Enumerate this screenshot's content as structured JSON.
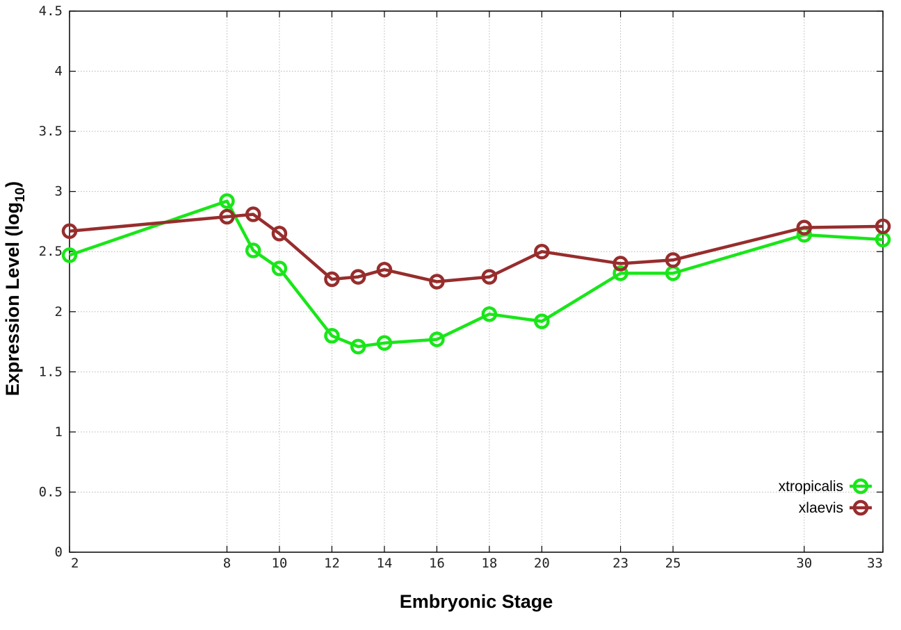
{
  "chart_data": {
    "type": "line",
    "xlabel": "Embryonic Stage",
    "ylabel": "Expression Level (log",
    "ylabel_subscript": "10",
    "ylabel_suffix": ")",
    "x": [
      2,
      8,
      9,
      10,
      12,
      13,
      14,
      16,
      18,
      20,
      23,
      25,
      30,
      33
    ],
    "x_ticks": [
      "2",
      "8",
      "10",
      "12",
      "14",
      "16",
      "18",
      "20",
      "23",
      "25",
      "30",
      "33"
    ],
    "y_ticks": [
      "0",
      "0.5",
      "1",
      "1.5",
      "2",
      "2.5",
      "3",
      "3.5",
      "4",
      "4.5"
    ],
    "ylim": [
      0,
      4.5
    ],
    "grid": true,
    "legend_position": "bottom-right",
    "series": [
      {
        "name": "xtropicalis",
        "color": "#19e619",
        "values": [
          2.47,
          2.92,
          2.51,
          2.36,
          1.8,
          1.71,
          1.74,
          1.77,
          1.98,
          1.92,
          2.32,
          2.32,
          2.64,
          2.6
        ]
      },
      {
        "name": "xlaevis",
        "color": "#972d2d",
        "values": [
          2.67,
          2.79,
          2.81,
          2.65,
          2.27,
          2.29,
          2.35,
          2.25,
          2.29,
          2.5,
          2.4,
          2.43,
          2.7,
          2.71
        ]
      }
    ]
  }
}
